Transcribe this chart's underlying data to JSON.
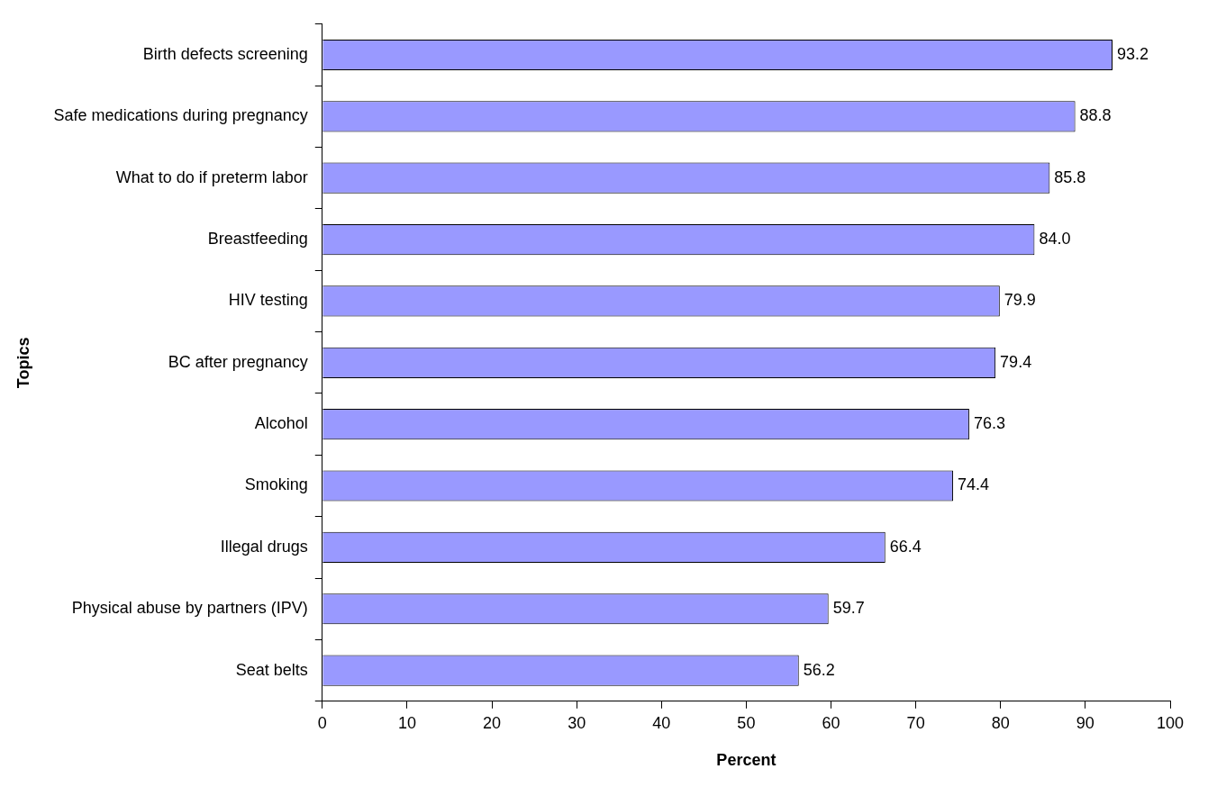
{
  "chart_data": {
    "type": "bar",
    "orientation": "horizontal",
    "xlabel": "Percent",
    "ylabel": "Topics",
    "categories": [
      "Birth defects screening",
      "Safe medications during pregnancy",
      "What to do if preterm labor",
      "Breastfeeding",
      "HIV testing",
      "BC after pregnancy",
      "Alcohol",
      "Smoking",
      "Illegal drugs",
      "Physical abuse by partners (IPV)",
      "Seat belts"
    ],
    "values": [
      93.2,
      88.8,
      85.8,
      84.0,
      79.9,
      79.4,
      76.3,
      74.4,
      66.4,
      59.7,
      56.2
    ],
    "value_labels": [
      "93.2",
      "88.8",
      "85.8",
      "84.0",
      "79.9",
      "79.4",
      "76.3",
      "74.4",
      "66.4",
      "59.7",
      "56.2"
    ],
    "color": "#9999ff",
    "xlim": [
      0,
      100
    ],
    "xticks": [
      0,
      10,
      20,
      30,
      40,
      50,
      60,
      70,
      80,
      90,
      100
    ],
    "grid": false,
    "legend": false
  }
}
